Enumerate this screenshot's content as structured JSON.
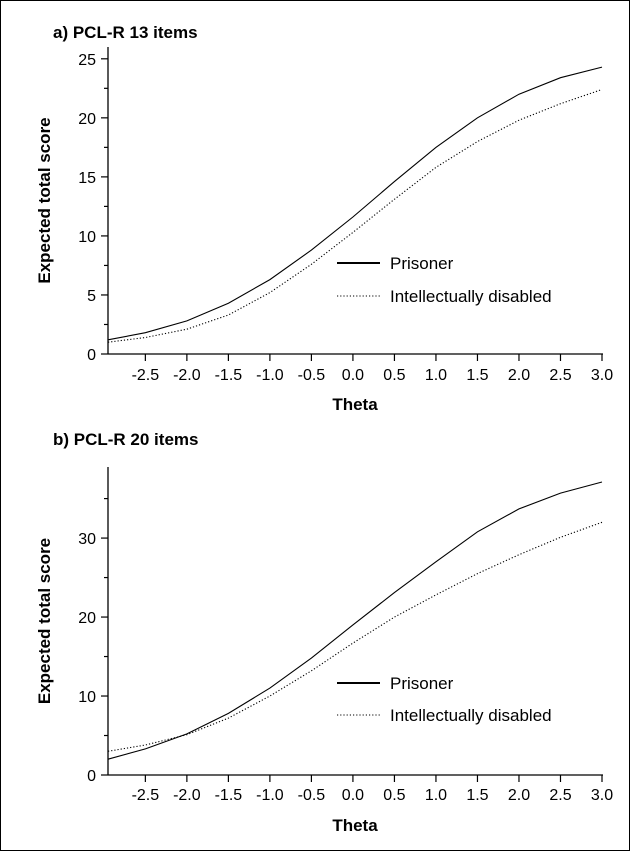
{
  "chart_data": [
    {
      "type": "line",
      "title": "a) PCL-R 13 items",
      "xlabel": "Theta",
      "ylabel": "Expected total score",
      "xlim": [
        -2.95,
        3.0
      ],
      "ylim": [
        0,
        26
      ],
      "xticks": [
        "-2.5",
        "-2.0",
        "-1.5",
        "-1.0",
        "-0.5",
        "0.0",
        "0.5",
        "1.0",
        "1.5",
        "2.0",
        "2.5",
        "3.0"
      ],
      "yticks": [
        "0",
        "5",
        "10",
        "15",
        "20",
        "25"
      ],
      "legend_position": "right",
      "series": [
        {
          "name": "Prisoner",
          "style": "solid",
          "x": [
            -2.95,
            -2.5,
            -2.0,
            -1.5,
            -1.0,
            -0.5,
            0.0,
            0.5,
            1.0,
            1.5,
            2.0,
            2.5,
            3.0
          ],
          "y": [
            1.2,
            1.8,
            2.8,
            4.3,
            6.3,
            8.8,
            11.6,
            14.6,
            17.5,
            20.0,
            22.0,
            23.4,
            24.3
          ]
        },
        {
          "name": "Intellectually disabled",
          "style": "dotted",
          "x": [
            -2.95,
            -2.5,
            -2.0,
            -1.5,
            -1.0,
            -0.5,
            0.0,
            0.5,
            1.0,
            1.5,
            2.0,
            2.5,
            3.0
          ],
          "y": [
            1.0,
            1.4,
            2.1,
            3.3,
            5.2,
            7.6,
            10.3,
            13.1,
            15.8,
            18.0,
            19.8,
            21.2,
            22.4
          ]
        }
      ]
    },
    {
      "type": "line",
      "title": "b) PCL-R 20 items",
      "xlabel": "Theta",
      "ylabel": "Expected total score",
      "xlim": [
        -2.95,
        3.0
      ],
      "ylim": [
        0,
        39
      ],
      "xticks": [
        "-2.5",
        "-2.0",
        "-1.5",
        "-1.0",
        "-0.5",
        "0.0",
        "0.5",
        "1.0",
        "1.5",
        "2.0",
        "2.5",
        "3.0"
      ],
      "yticks": [
        "0",
        "10",
        "20",
        "30"
      ],
      "legend_position": "right",
      "series": [
        {
          "name": "Prisoner",
          "style": "solid",
          "x": [
            -2.95,
            -2.5,
            -2.0,
            -1.5,
            -1.0,
            -0.5,
            0.0,
            0.5,
            1.0,
            1.5,
            2.0,
            2.5,
            3.0
          ],
          "y": [
            2.0,
            3.3,
            5.2,
            7.8,
            11.0,
            14.8,
            19.0,
            23.1,
            27.0,
            30.8,
            33.7,
            35.7,
            37.1
          ]
        },
        {
          "name": "Intellectually disabled",
          "style": "dotted",
          "x": [
            -2.95,
            -2.5,
            -2.0,
            -1.5,
            -1.0,
            -0.5,
            0.0,
            0.5,
            1.0,
            1.5,
            2.0,
            2.5,
            3.0
          ],
          "y": [
            3.0,
            3.8,
            5.1,
            7.2,
            10.0,
            13.2,
            16.7,
            20.0,
            22.8,
            25.5,
            27.9,
            30.1,
            32.0
          ]
        }
      ]
    }
  ]
}
